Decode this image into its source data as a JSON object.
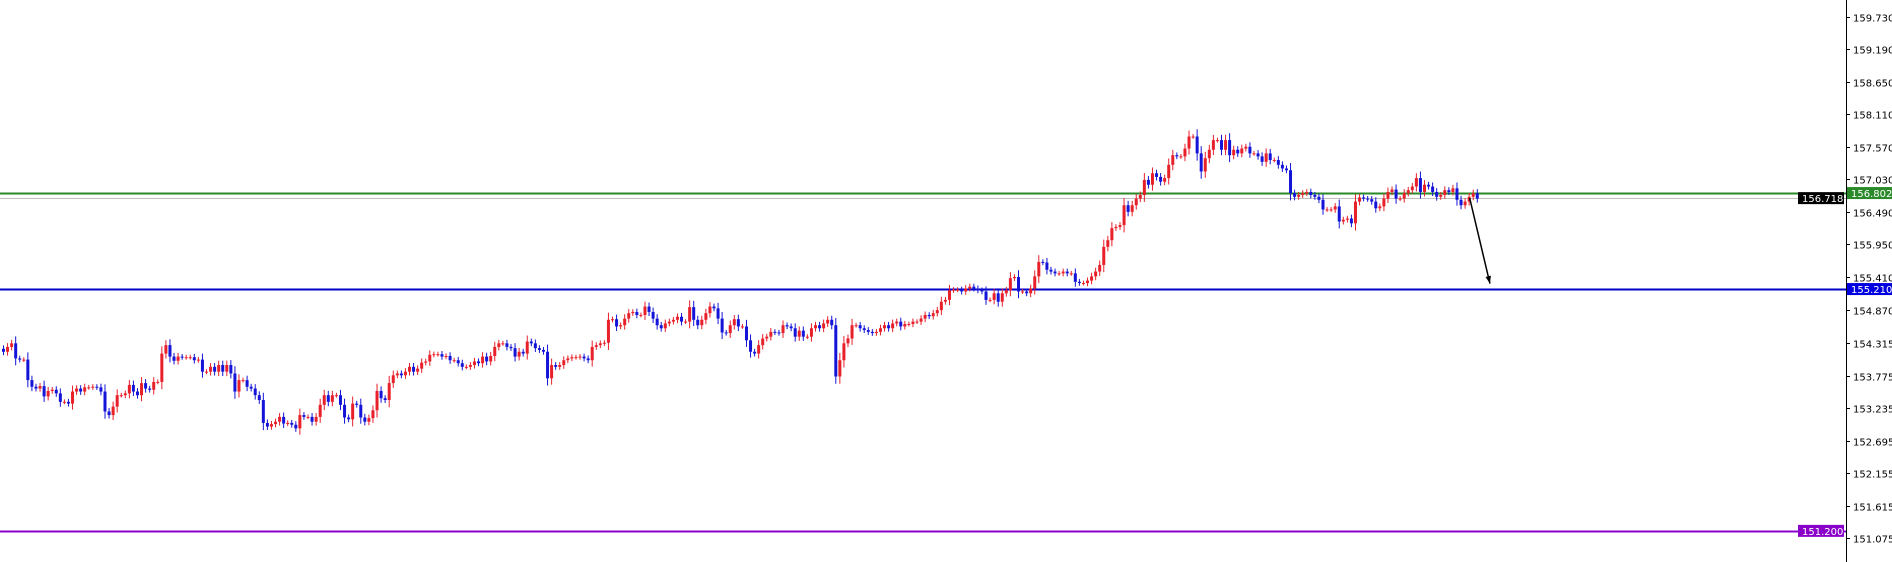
{
  "chart_data": {
    "type": "candlestick",
    "title": "",
    "xlabel": "",
    "ylabel": "",
    "ylim": [
      150.95,
      159.95
    ],
    "grid": false,
    "colors": {
      "bull": "#e8202a",
      "bear": "#1414d8",
      "axis": "#000000"
    },
    "y_ticks": [
      "159.730",
      "159.190",
      "158.650",
      "158.110",
      "157.570",
      "157.030",
      "156.490",
      "155.950",
      "155.410",
      "154.870",
      "154.315",
      "153.775",
      "153.235",
      "152.695",
      "152.155",
      "151.615",
      "151.075"
    ],
    "horizontal_lines": [
      {
        "price": 156.802,
        "label": "156.802",
        "color": "#2a8a2a",
        "label_bg": "#2a8a2a"
      },
      {
        "price": 156.718,
        "label": "156.718",
        "color": "#c0c0c0",
        "label_bg": "#000000"
      },
      {
        "price": 155.21,
        "label": "155.210",
        "color": "#0000c8",
        "label_bg": "#0000e0"
      },
      {
        "price": 151.2,
        "label": "151.200",
        "color": "#8a00c8",
        "label_bg": "#8a00c8"
      }
    ],
    "arrow": {
      "from_bar": 361,
      "from_price": 156.72,
      "to_bar": 366,
      "to_price": 155.3,
      "color": "#000000"
    },
    "closes": [
      154.17,
      154.25,
      154.31,
      154.06,
      154.04,
      154.04,
      153.7,
      153.59,
      153.56,
      153.6,
      153.43,
      153.52,
      153.54,
      153.48,
      153.34,
      153.34,
      153.31,
      153.51,
      153.56,
      153.51,
      153.58,
      153.58,
      153.59,
      153.58,
      153.51,
      153.18,
      153.12,
      153.26,
      153.45,
      153.45,
      153.48,
      153.62,
      153.51,
      153.45,
      153.65,
      153.56,
      153.54,
      153.67,
      153.67,
      154.14,
      154.28,
      154.09,
      154.02,
      154.09,
      154.08,
      154.08,
      154.08,
      154.03,
      154.04,
      153.84,
      153.84,
      153.92,
      153.84,
      153.95,
      153.84,
      153.95,
      153.81,
      153.51,
      153.7,
      153.7,
      153.59,
      153.56,
      153.45,
      153.37,
      152.99,
      152.93,
      152.97,
      153.01,
      153.09,
      152.98,
      152.99,
      152.96,
      152.9,
      153.12,
      153.09,
      153.09,
      153.01,
      153.09,
      153.29,
      153.45,
      153.34,
      153.45,
      153.45,
      153.29,
      153.08,
      153.05,
      153.31,
      153.29,
      153.08,
      153.01,
      153.07,
      153.2,
      153.52,
      153.4,
      153.37,
      153.65,
      153.78,
      153.81,
      153.78,
      153.84,
      153.92,
      153.84,
      153.89,
      153.99,
      154.01,
      154.12,
      154.13,
      154.13,
      154.09,
      154.1,
      154.03,
      154.03,
      153.98,
      153.92,
      153.92,
      153.95,
      154.01,
      153.98,
      154.09,
      154.01,
      154.1,
      154.25,
      154.31,
      154.31,
      154.25,
      154.23,
      154.09,
      154.17,
      154.14,
      154.34,
      154.31,
      154.23,
      154.2,
      154.17,
      153.73,
      153.95,
      153.92,
      153.95,
      154.03,
      154.06,
      154.08,
      154.08,
      154.09,
      154.06,
      154.03,
      154.25,
      154.28,
      154.31,
      154.32,
      154.7,
      154.71,
      154.59,
      154.61,
      154.72,
      154.81,
      154.83,
      154.78,
      154.78,
      154.92,
      154.83,
      154.72,
      154.61,
      154.56,
      154.64,
      154.67,
      154.7,
      154.75,
      154.67,
      154.67,
      154.91,
      154.7,
      154.61,
      154.7,
      154.81,
      154.92,
      154.89,
      154.72,
      154.49,
      154.48,
      154.61,
      154.71,
      154.59,
      154.59,
      154.36,
      154.17,
      154.14,
      154.28,
      154.39,
      154.42,
      154.5,
      154.49,
      154.48,
      154.61,
      154.59,
      154.56,
      154.42,
      154.52,
      154.42,
      154.42,
      154.56,
      154.61,
      154.56,
      154.64,
      154.7,
      154.61,
      153.76,
      154.03,
      154.31,
      154.39,
      154.61,
      154.61,
      154.56,
      154.53,
      154.5,
      154.48,
      154.5,
      154.56,
      154.61,
      154.56,
      154.64,
      154.67,
      154.59,
      154.63,
      154.63,
      154.67,
      154.67,
      154.72,
      154.78,
      154.76,
      154.81,
      154.86,
      155.0,
      155.03,
      155.19,
      155.2,
      155.2,
      155.17,
      155.22,
      155.25,
      155.22,
      155.19,
      155.17,
      155.03,
      155.03,
      155.14,
      155.0,
      155.14,
      155.19,
      155.39,
      155.41,
      155.17,
      155.17,
      155.14,
      155.22,
      155.42,
      155.66,
      155.65,
      155.53,
      155.5,
      155.47,
      155.47,
      155.5,
      155.47,
      155.47,
      155.33,
      155.31,
      155.31,
      155.35,
      155.42,
      155.5,
      155.61,
      155.91,
      156.02,
      156.22,
      156.24,
      156.27,
      156.6,
      156.49,
      156.6,
      156.71,
      156.77,
      157.02,
      156.94,
      157.13,
      157.07,
      156.99,
      157.05,
      157.27,
      157.43,
      157.41,
      157.41,
      157.54,
      157.74,
      157.74,
      157.46,
      157.16,
      157.38,
      157.52,
      157.68,
      157.68,
      157.52,
      157.68,
      157.43,
      157.52,
      157.46,
      157.54,
      157.57,
      157.46,
      157.46,
      157.41,
      157.32,
      157.46,
      157.35,
      157.35,
      157.27,
      157.21,
      157.18,
      156.8,
      156.74,
      156.77,
      156.8,
      156.82,
      156.77,
      156.74,
      156.69,
      156.53,
      156.53,
      156.53,
      156.58,
      156.33,
      156.36,
      156.38,
      156.3,
      156.66,
      156.73,
      156.71,
      156.7,
      156.66,
      156.55,
      156.58,
      156.71,
      156.82,
      156.86,
      156.71,
      156.71,
      156.8,
      156.85,
      156.91,
      157.05,
      156.82,
      156.94,
      156.91,
      156.82,
      156.74,
      156.77,
      156.85,
      156.82,
      156.88,
      156.69,
      156.6,
      156.66,
      156.74,
      156.8,
      156.71
    ]
  }
}
